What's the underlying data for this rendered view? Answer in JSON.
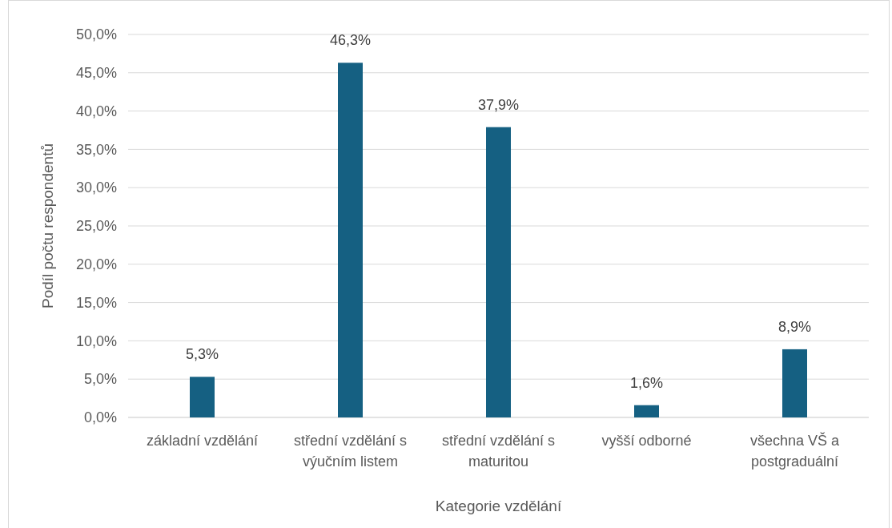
{
  "chart_data": {
    "type": "bar",
    "xlabel": "Kategorie vzdělání",
    "ylabel": "Podíl počtu respondentů",
    "categories": [
      "základní vzdělání",
      "střední vzdělání s výučním listem",
      "střední vzdělání s maturitou",
      "vyšší odborné",
      "všechna VŠ a postgraduální"
    ],
    "values": [
      5.3,
      46.3,
      37.9,
      1.6,
      8.9
    ],
    "value_labels": [
      "5,3%",
      "46,3%",
      "37,9%",
      "1,6%",
      "8,9%"
    ],
    "color": "#156082",
    "ylim": [
      0,
      50
    ],
    "yticks": [
      {
        "value": 0,
        "label": "0,0%"
      },
      {
        "value": 5,
        "label": "5,0%"
      },
      {
        "value": 10,
        "label": "10,0%"
      },
      {
        "value": 15,
        "label": "15,0%"
      },
      {
        "value": 20,
        "label": "20,0%"
      },
      {
        "value": 25,
        "label": "25,0%"
      },
      {
        "value": 30,
        "label": "30,0%"
      },
      {
        "value": 35,
        "label": "35,0%"
      },
      {
        "value": 40,
        "label": "40,0%"
      },
      {
        "value": 45,
        "label": "45,0%"
      },
      {
        "value": 50,
        "label": "50,0%"
      }
    ],
    "grid": "y"
  }
}
